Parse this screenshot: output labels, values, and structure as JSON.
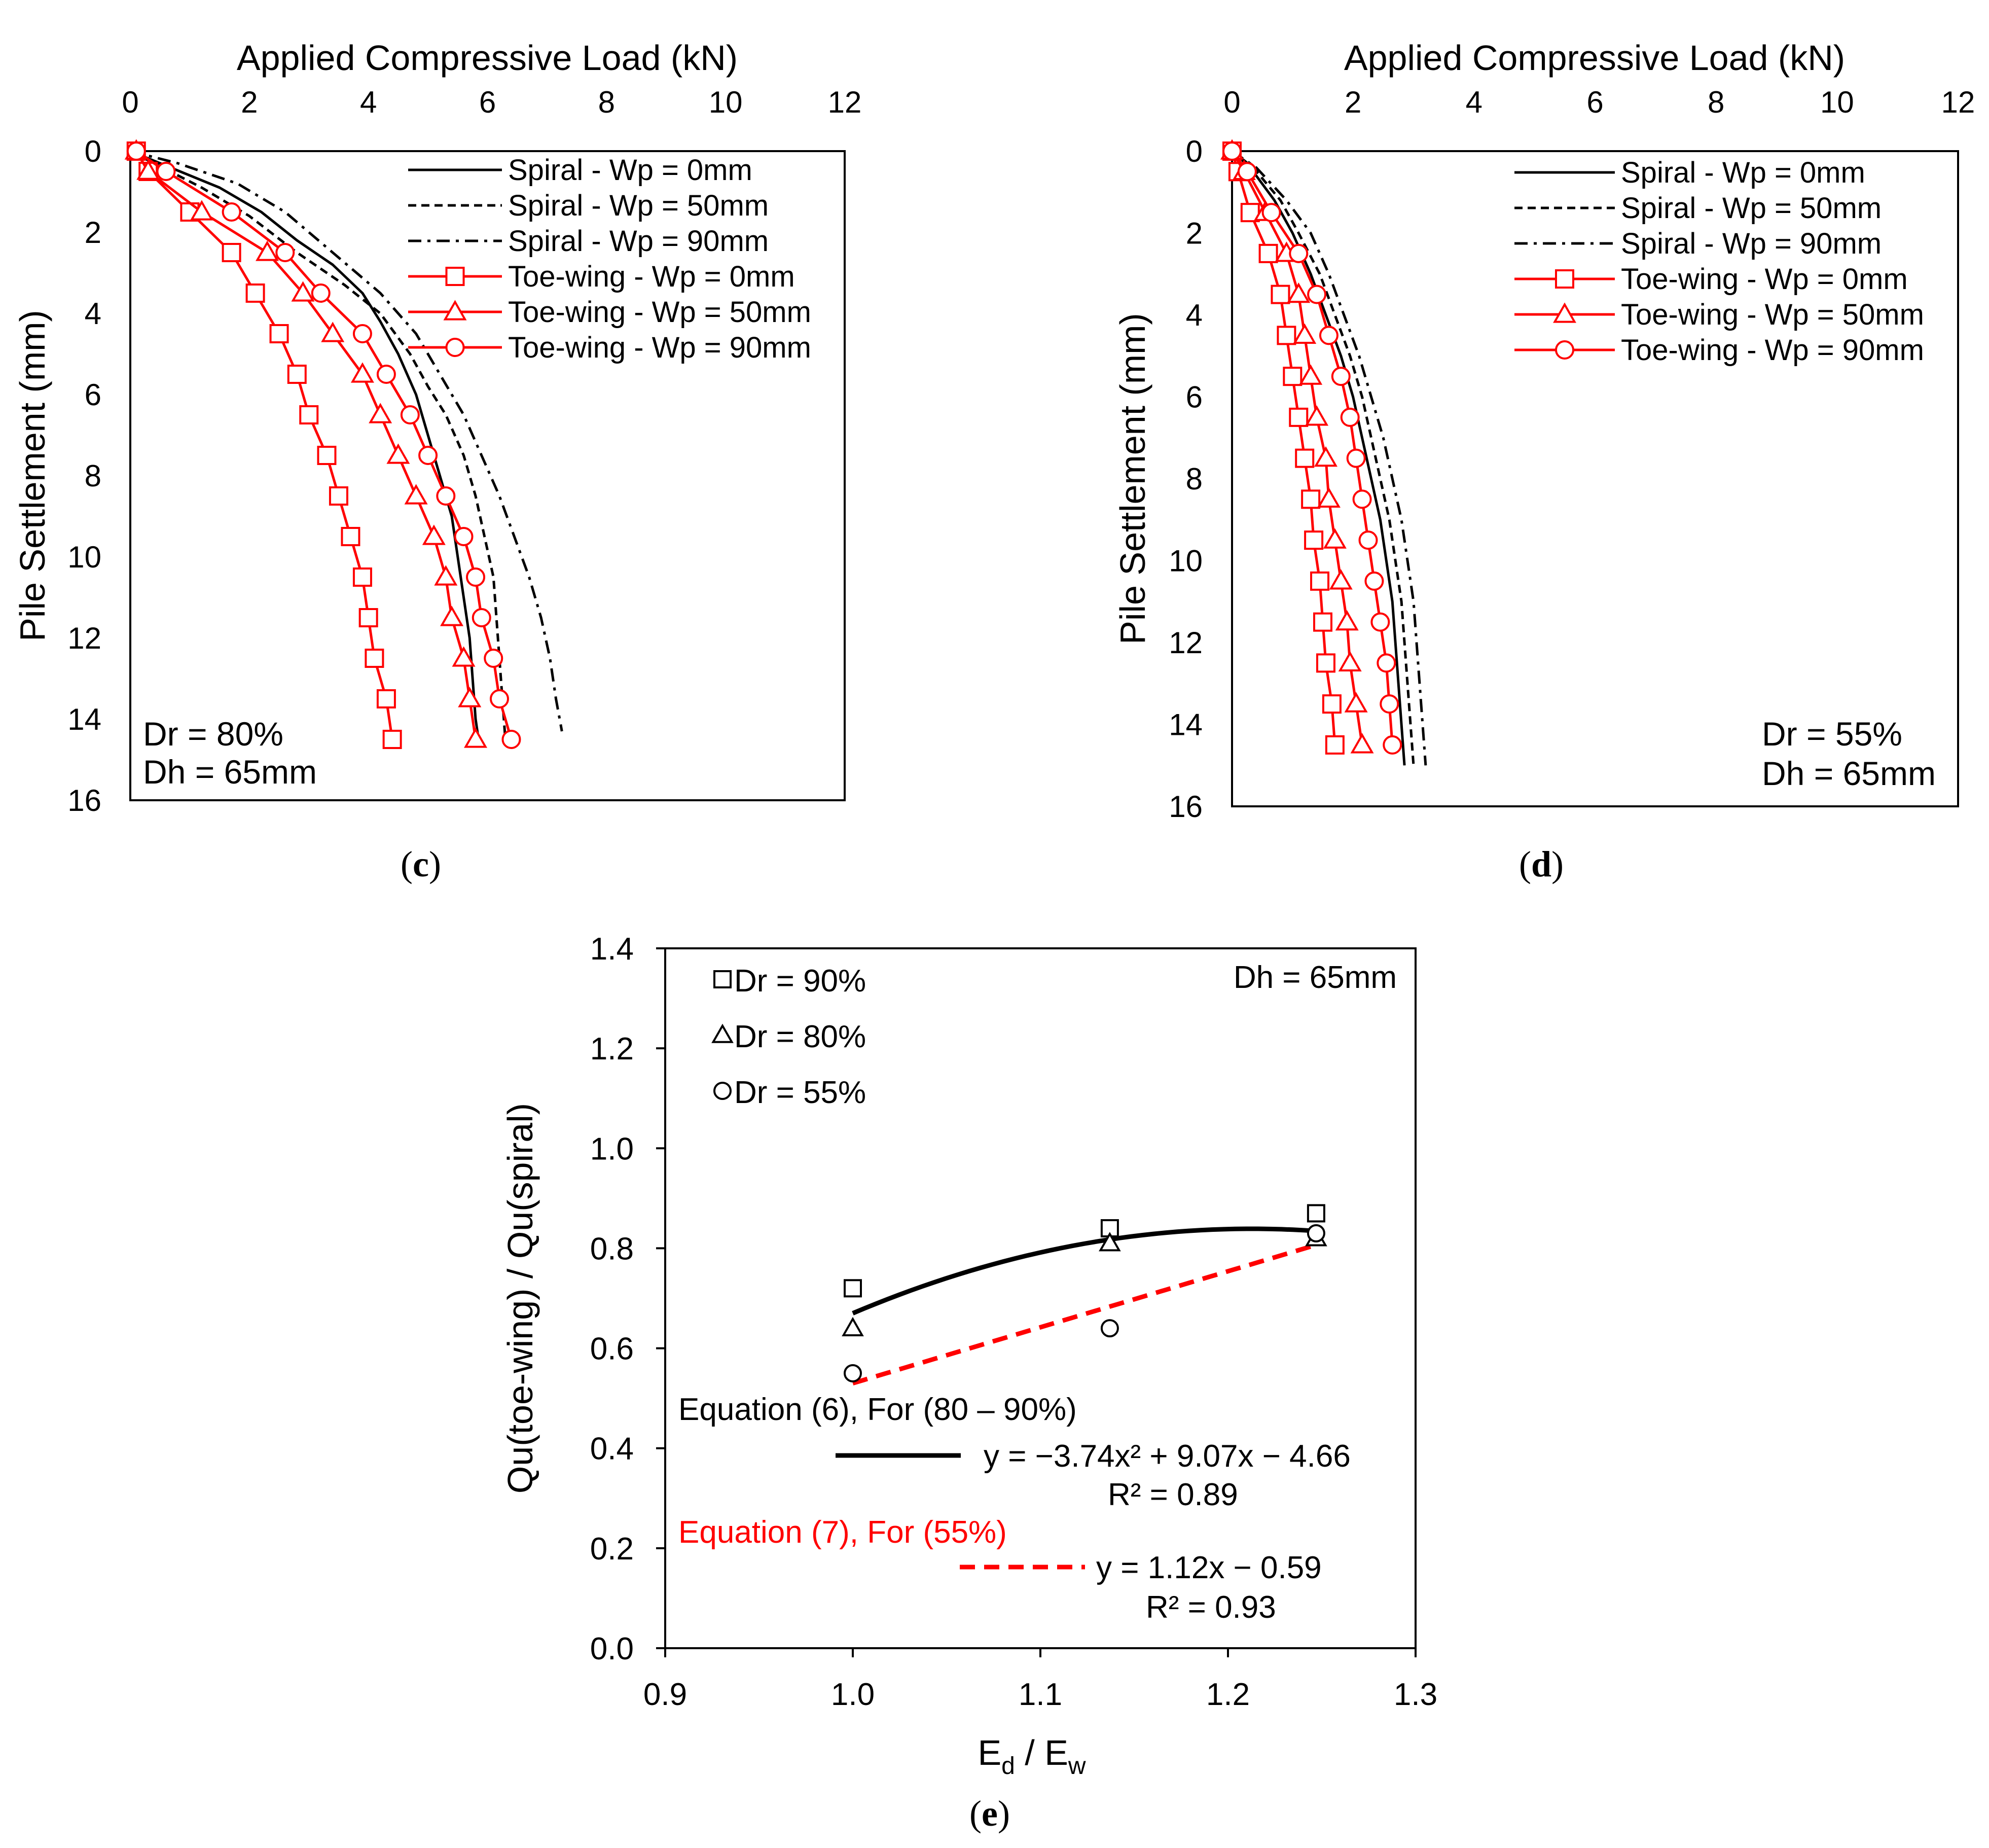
{
  "chart_data": [
    {
      "id": "c",
      "type": "line",
      "caption": "c",
      "xlabel": "Applied Compressive Load (kN)",
      "ylabel": "Pile Settlement (mm)",
      "xlim": [
        0,
        12
      ],
      "ylim": [
        0,
        16
      ],
      "xticks": [
        "0",
        "2",
        "4",
        "6",
        "8",
        "10",
        "12"
      ],
      "yticks": [
        "0",
        "2",
        "4",
        "6",
        "8",
        "10",
        "12",
        "14",
        "16"
      ],
      "annotation": [
        "Dr  = 80%",
        "Dh = 65mm"
      ],
      "series": [
        {
          "name": "Spiral - Wp = 0mm",
          "color": "#000000",
          "dash": "solid",
          "marker": "none",
          "points": [
            [
              0,
              0
            ],
            [
              0.5,
              0.3
            ],
            [
              1.5,
              0.9
            ],
            [
              2.2,
              1.5
            ],
            [
              2.8,
              2.2
            ],
            [
              3.4,
              2.8
            ],
            [
              3.9,
              3.5
            ],
            [
              4.2,
              4.2
            ],
            [
              4.5,
              5.0
            ],
            [
              4.8,
              6.0
            ],
            [
              5.0,
              7.0
            ],
            [
              5.2,
              8.0
            ],
            [
              5.4,
              9.0
            ],
            [
              5.5,
              10.0
            ],
            [
              5.6,
              11.0
            ],
            [
              5.7,
              12.0
            ],
            [
              5.75,
              13.0
            ],
            [
              5.8,
              14.0
            ],
            [
              5.85,
              14.5
            ]
          ]
        },
        {
          "name": "Spiral - Wp = 50mm",
          "color": "#000000",
          "dash": "dashed",
          "marker": "none",
          "points": [
            [
              0,
              0
            ],
            [
              0.4,
              0.3
            ],
            [
              1.2,
              0.9
            ],
            [
              2.0,
              1.6
            ],
            [
              2.8,
              2.5
            ],
            [
              3.6,
              3.3
            ],
            [
              4.2,
              4.0
            ],
            [
              4.7,
              5.0
            ],
            [
              5.0,
              5.8
            ],
            [
              5.3,
              6.5
            ],
            [
              5.6,
              7.5
            ],
            [
              5.8,
              8.5
            ],
            [
              5.95,
              9.5
            ],
            [
              6.1,
              10.5
            ],
            [
              6.15,
              11.5
            ],
            [
              6.2,
              12.5
            ],
            [
              6.25,
              13.5
            ],
            [
              6.3,
              14.5
            ]
          ]
        },
        {
          "name": "Spiral - Wp = 90mm",
          "color": "#000000",
          "dash": "dashdot",
          "marker": "none",
          "points": [
            [
              0,
              0
            ],
            [
              0.8,
              0.3
            ],
            [
              1.8,
              0.8
            ],
            [
              2.6,
              1.5
            ],
            [
              3.4,
              2.5
            ],
            [
              4.2,
              3.5
            ],
            [
              4.8,
              4.5
            ],
            [
              5.2,
              5.5
            ],
            [
              5.6,
              6.5
            ],
            [
              5.9,
              7.5
            ],
            [
              6.2,
              8.5
            ],
            [
              6.45,
              9.5
            ],
            [
              6.7,
              10.5
            ],
            [
              6.9,
              11.5
            ],
            [
              7.05,
              12.5
            ],
            [
              7.15,
              13.5
            ],
            [
              7.25,
              14.3
            ]
          ]
        },
        {
          "name": "Toe-wing - Wp = 0mm",
          "color": "#ff0000",
          "dash": "solid",
          "marker": "square",
          "points": [
            [
              0.1,
              0
            ],
            [
              0.3,
              0.5
            ],
            [
              1.0,
              1.5
            ],
            [
              1.7,
              2.5
            ],
            [
              2.1,
              3.5
            ],
            [
              2.5,
              4.5
            ],
            [
              2.8,
              5.5
            ],
            [
              3.0,
              6.5
            ],
            [
              3.3,
              7.5
            ],
            [
              3.5,
              8.5
            ],
            [
              3.7,
              9.5
            ],
            [
              3.9,
              10.5
            ],
            [
              4.0,
              11.5
            ],
            [
              4.1,
              12.5
            ],
            [
              4.3,
              13.5
            ],
            [
              4.4,
              14.5
            ]
          ]
        },
        {
          "name": "Toe-wing - Wp = 50mm",
          "color": "#ff0000",
          "dash": "solid",
          "marker": "triangle",
          "points": [
            [
              0.1,
              0
            ],
            [
              0.3,
              0.5
            ],
            [
              1.2,
              1.5
            ],
            [
              2.3,
              2.5
            ],
            [
              2.9,
              3.5
            ],
            [
              3.4,
              4.5
            ],
            [
              3.9,
              5.5
            ],
            [
              4.2,
              6.5
            ],
            [
              4.5,
              7.5
            ],
            [
              4.8,
              8.5
            ],
            [
              5.1,
              9.5
            ],
            [
              5.3,
              10.5
            ],
            [
              5.4,
              11.5
            ],
            [
              5.6,
              12.5
            ],
            [
              5.7,
              13.5
            ],
            [
              5.8,
              14.5
            ]
          ]
        },
        {
          "name": "Toe-wing - Wp = 90mm",
          "color": "#ff0000",
          "dash": "solid",
          "marker": "circle",
          "points": [
            [
              0.1,
              0
            ],
            [
              0.6,
              0.5
            ],
            [
              1.7,
              1.5
            ],
            [
              2.6,
              2.5
            ],
            [
              3.2,
              3.5
            ],
            [
              3.9,
              4.5
            ],
            [
              4.3,
              5.5
            ],
            [
              4.7,
              6.5
            ],
            [
              5.0,
              7.5
            ],
            [
              5.3,
              8.5
            ],
            [
              5.6,
              9.5
            ],
            [
              5.8,
              10.5
            ],
            [
              5.9,
              11.5
            ],
            [
              6.1,
              12.5
            ],
            [
              6.2,
              13.5
            ],
            [
              6.4,
              14.5
            ]
          ]
        }
      ]
    },
    {
      "id": "d",
      "type": "line",
      "caption": "d",
      "xlabel": "Applied Compressive Load (kN)",
      "ylabel": "Pile Settlement (mm)",
      "xlim": [
        0,
        12
      ],
      "ylim": [
        0,
        16
      ],
      "xticks": [
        "0",
        "2",
        "4",
        "6",
        "8",
        "10",
        "12"
      ],
      "yticks": [
        "0",
        "2",
        "4",
        "6",
        "8",
        "10",
        "12",
        "14",
        "16"
      ],
      "annotation": [
        "Dr  = 55%",
        "Dh = 65mm"
      ],
      "series": [
        {
          "name": "Spiral - Wp = 0mm",
          "color": "#000000",
          "dash": "solid",
          "marker": "none",
          "points": [
            [
              0,
              0
            ],
            [
              0.3,
              0.4
            ],
            [
              0.7,
              1.2
            ],
            [
              1.0,
              2.0
            ],
            [
              1.3,
              3.0
            ],
            [
              1.55,
              4.0
            ],
            [
              1.8,
              5.0
            ],
            [
              2.0,
              6.0
            ],
            [
              2.15,
              7.0
            ],
            [
              2.3,
              8.0
            ],
            [
              2.45,
              9.0
            ],
            [
              2.55,
              10.0
            ],
            [
              2.65,
              11.0
            ],
            [
              2.7,
              12.0
            ],
            [
              2.75,
              13.0
            ],
            [
              2.8,
              14.0
            ],
            [
              2.85,
              15.0
            ]
          ]
        },
        {
          "name": "Spiral - Wp = 50mm",
          "color": "#000000",
          "dash": "dashed",
          "marker": "none",
          "points": [
            [
              0,
              0
            ],
            [
              0.35,
              0.4
            ],
            [
              0.8,
              1.2
            ],
            [
              1.1,
              2.0
            ],
            [
              1.45,
              3.0
            ],
            [
              1.7,
              4.0
            ],
            [
              1.95,
              5.0
            ],
            [
              2.15,
              6.0
            ],
            [
              2.3,
              7.0
            ],
            [
              2.45,
              8.0
            ],
            [
              2.6,
              9.0
            ],
            [
              2.7,
              10.0
            ],
            [
              2.8,
              11.0
            ],
            [
              2.85,
              12.0
            ],
            [
              2.9,
              13.0
            ],
            [
              2.95,
              14.0
            ],
            [
              3.0,
              15.0
            ]
          ]
        },
        {
          "name": "Spiral - Wp = 90mm",
          "color": "#000000",
          "dash": "dashdot",
          "marker": "none",
          "points": [
            [
              0,
              0
            ],
            [
              0.4,
              0.4
            ],
            [
              0.9,
              1.2
            ],
            [
              1.3,
              2.0
            ],
            [
              1.6,
              3.0
            ],
            [
              1.85,
              4.0
            ],
            [
              2.1,
              5.0
            ],
            [
              2.3,
              6.0
            ],
            [
              2.5,
              7.0
            ],
            [
              2.65,
              8.0
            ],
            [
              2.8,
              9.0
            ],
            [
              2.9,
              10.0
            ],
            [
              3.0,
              11.0
            ],
            [
              3.05,
              12.0
            ],
            [
              3.1,
              13.0
            ],
            [
              3.15,
              14.0
            ],
            [
              3.2,
              15.0
            ]
          ]
        },
        {
          "name": "Toe-wing - Wp = 0mm",
          "color": "#ff0000",
          "dash": "solid",
          "marker": "square",
          "points": [
            [
              0,
              0
            ],
            [
              0.1,
              0.5
            ],
            [
              0.3,
              1.5
            ],
            [
              0.6,
              2.5
            ],
            [
              0.8,
              3.5
            ],
            [
              0.9,
              4.5
            ],
            [
              1.0,
              5.5
            ],
            [
              1.1,
              6.5
            ],
            [
              1.2,
              7.5
            ],
            [
              1.3,
              8.5
            ],
            [
              1.35,
              9.5
            ],
            [
              1.45,
              10.5
            ],
            [
              1.5,
              11.5
            ],
            [
              1.55,
              12.5
            ],
            [
              1.65,
              13.5
            ],
            [
              1.7,
              14.5
            ]
          ]
        },
        {
          "name": "Toe-wing - Wp = 50mm",
          "color": "#ff0000",
          "dash": "solid",
          "marker": "triangle",
          "points": [
            [
              0,
              0
            ],
            [
              0.2,
              0.5
            ],
            [
              0.55,
              1.5
            ],
            [
              0.9,
              2.5
            ],
            [
              1.1,
              3.5
            ],
            [
              1.2,
              4.5
            ],
            [
              1.3,
              5.5
            ],
            [
              1.4,
              6.5
            ],
            [
              1.55,
              7.5
            ],
            [
              1.6,
              8.5
            ],
            [
              1.7,
              9.5
            ],
            [
              1.8,
              10.5
            ],
            [
              1.9,
              11.5
            ],
            [
              1.95,
              12.5
            ],
            [
              2.05,
              13.5
            ],
            [
              2.15,
              14.5
            ]
          ]
        },
        {
          "name": "Toe-wing - Wp = 90mm",
          "color": "#ff0000",
          "dash": "solid",
          "marker": "circle",
          "points": [
            [
              0,
              0
            ],
            [
              0.25,
              0.5
            ],
            [
              0.65,
              1.5
            ],
            [
              1.1,
              2.5
            ],
            [
              1.4,
              3.5
            ],
            [
              1.6,
              4.5
            ],
            [
              1.8,
              5.5
            ],
            [
              1.95,
              6.5
            ],
            [
              2.05,
              7.5
            ],
            [
              2.15,
              8.5
            ],
            [
              2.25,
              9.5
            ],
            [
              2.35,
              10.5
            ],
            [
              2.45,
              11.5
            ],
            [
              2.55,
              12.5
            ],
            [
              2.6,
              13.5
            ],
            [
              2.65,
              14.5
            ]
          ]
        }
      ]
    },
    {
      "id": "e",
      "type": "scatter",
      "caption": "e",
      "xlabel_main": "E",
      "xlabel_sub1": "d",
      "xlabel_mid": " / E",
      "xlabel_sub2": "w",
      "ylabel": "Qu(toe-wing) / Qu(spiral)",
      "xlim": [
        0.9,
        1.3
      ],
      "ylim": [
        0.0,
        1.4
      ],
      "xticks": [
        "0.9",
        "1.0",
        "1.1",
        "1.2",
        "1.3"
      ],
      "yticks": [
        "0.0",
        "0.2",
        "0.4",
        "0.6",
        "0.8",
        "1.0",
        "1.2",
        "1.4"
      ],
      "annotation": "Dh = 65mm",
      "series": [
        {
          "name": "Dr = 90%",
          "marker": "square",
          "x": [
            1.0,
            1.137,
            1.247
          ],
          "y": [
            0.72,
            0.84,
            0.87
          ]
        },
        {
          "name": "Dr = 80%",
          "marker": "triangle",
          "x": [
            1.0,
            1.137,
            1.247
          ],
          "y": [
            0.64,
            0.81,
            0.82
          ]
        },
        {
          "name": "Dr = 55%",
          "marker": "circle",
          "x": [
            1.0,
            1.137,
            1.247
          ],
          "y": [
            0.55,
            0.64,
            0.83
          ]
        }
      ],
      "fits": [
        {
          "title": "Equation (6), For (80 – 90%)",
          "equation": "y = −3.74x² + 9.07x − 4.66",
          "r2": "R² = 0.89",
          "color": "#000000",
          "dash": "solid",
          "type": "poly2",
          "coef": [
            -3.74,
            9.07,
            -4.66
          ],
          "xrange": [
            1.0,
            1.247
          ]
        },
        {
          "title": "Equation (7), For (55%)",
          "equation": "y = 1.12x − 0.59",
          "r2": "R² = 0.93",
          "color": "#ff0000",
          "dash": "dashed",
          "type": "linear",
          "coef": [
            1.12,
            -0.59
          ],
          "xrange": [
            1.0,
            1.247
          ]
        }
      ]
    }
  ]
}
